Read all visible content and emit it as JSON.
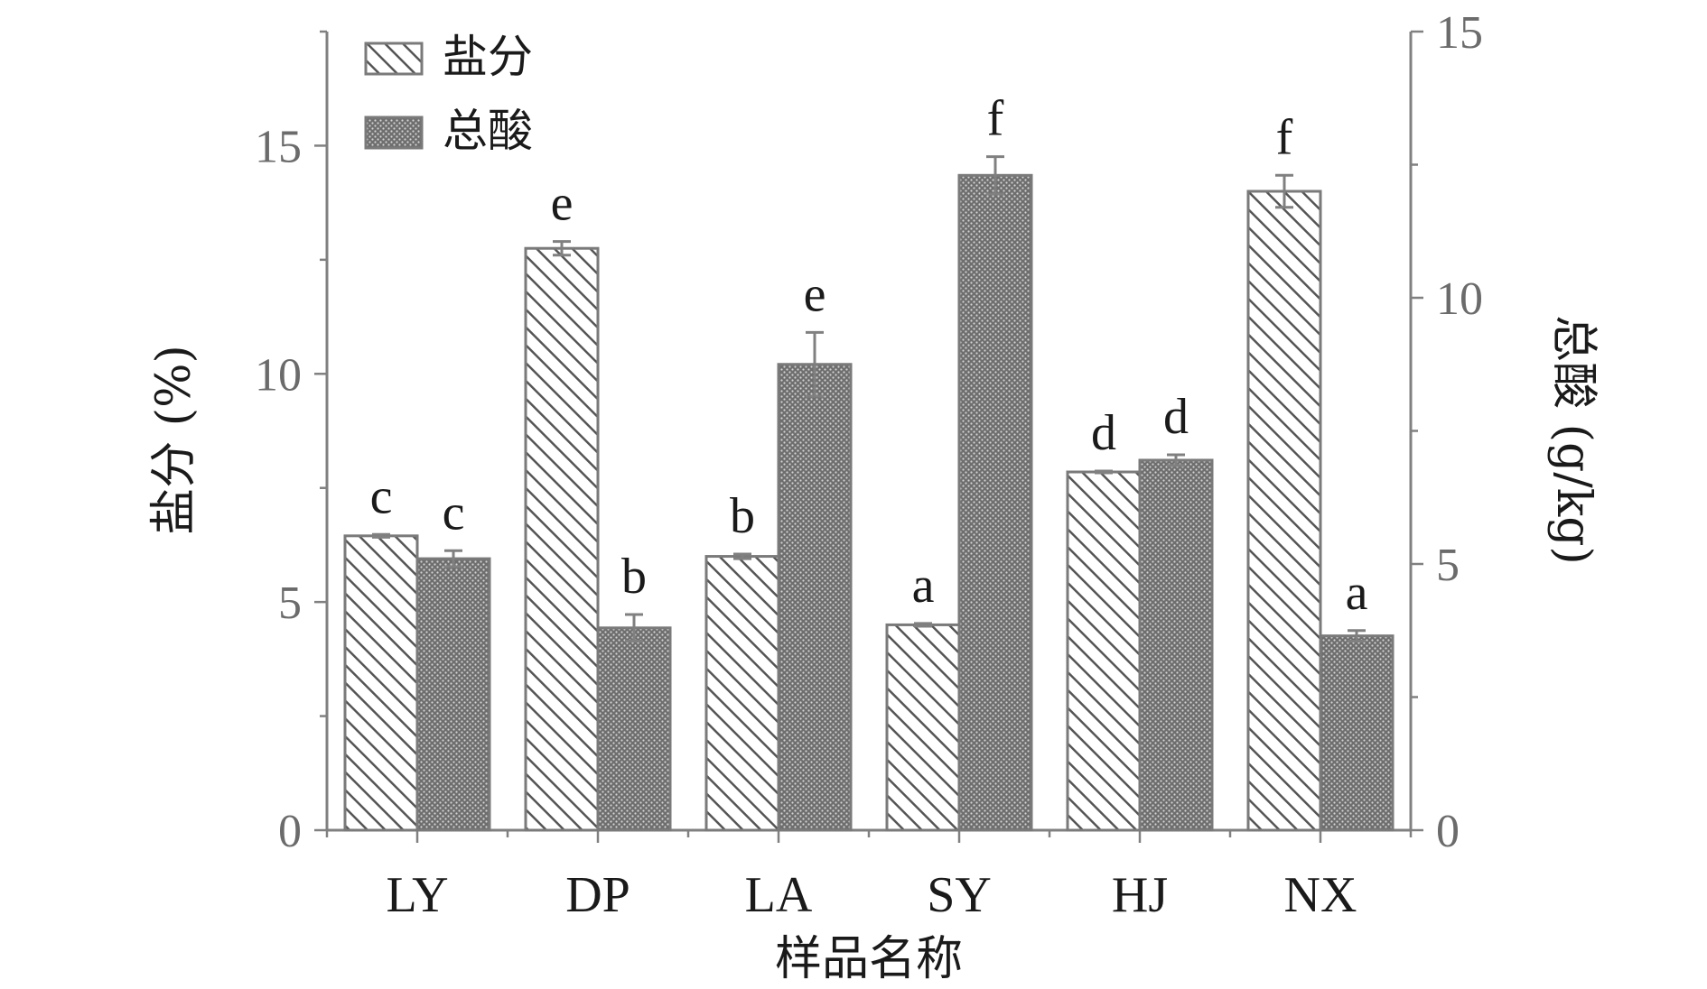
{
  "chart_data": {
    "type": "bar",
    "categories": [
      "LY",
      "DP",
      "LA",
      "SY",
      "HJ",
      "NX"
    ],
    "xlabel": "样品名称",
    "y_left": {
      "label": "盐分 (%)",
      "lim": [
        0,
        17.5
      ],
      "ticks": [
        0,
        5,
        10,
        15
      ],
      "minor_step": 2.5
    },
    "y_right": {
      "label": "总酸 (g/kg)",
      "lim": [
        0,
        15
      ],
      "ticks": [
        0,
        5,
        10,
        15
      ],
      "minor_step": 2.5
    },
    "series": [
      {
        "name": "盐分",
        "axis": "left",
        "pattern": "hatch",
        "values": [
          6.45,
          12.75,
          6.0,
          4.5,
          7.85,
          14.0
        ],
        "errors": [
          0.03,
          0.15,
          0.05,
          0.03,
          0.02,
          0.35
        ],
        "letters": [
          "c",
          "e",
          "b",
          "a",
          "d",
          "f"
        ]
      },
      {
        "name": "总酸",
        "axis": "right",
        "pattern": "dots",
        "values": [
          5.1,
          3.8,
          8.75,
          12.3,
          6.95,
          3.65
        ],
        "errors": [
          0.15,
          0.25,
          0.6,
          0.35,
          0.1,
          0.1
        ],
        "letters": [
          "c",
          "b",
          "e",
          "f",
          "d",
          "a"
        ]
      }
    ],
    "legend": {
      "position": "top-left"
    },
    "colors": {
      "axis": "#808080",
      "bar_stroke": "#7a7a7a",
      "error": "#808080"
    }
  }
}
